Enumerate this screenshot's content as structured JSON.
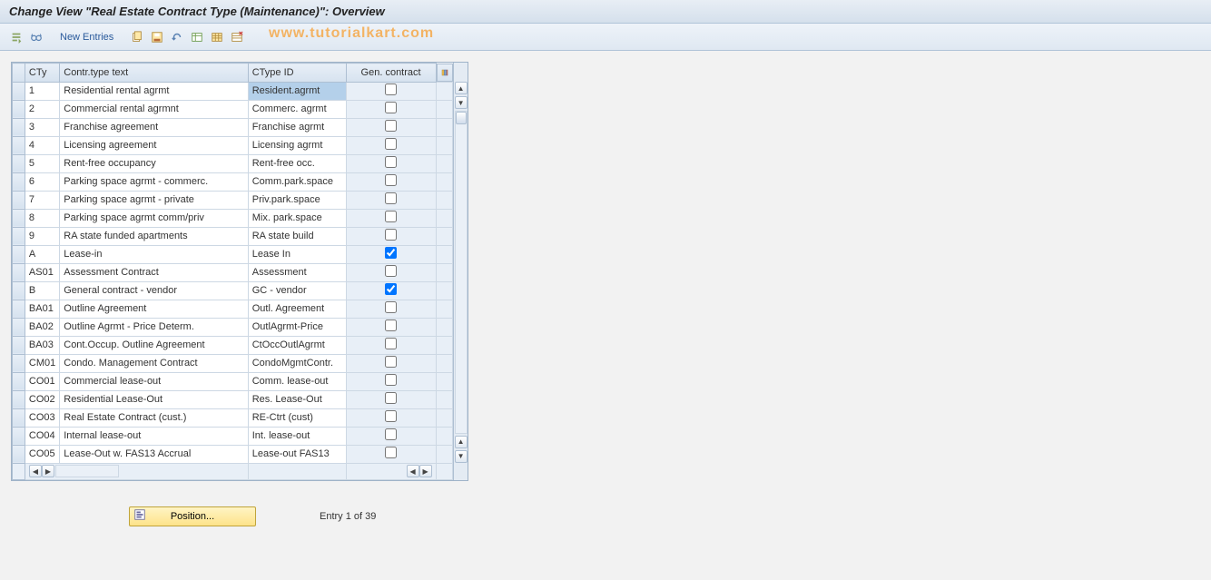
{
  "title": "Change View \"Real Estate Contract Type (Maintenance)\": Overview",
  "watermark": "www.tutorialkart.com",
  "toolbar": {
    "new_entries": "New Entries"
  },
  "table": {
    "columns": {
      "cty": "CTy",
      "text": "Contr.type text",
      "id": "CType ID",
      "gen": "Gen. contract"
    },
    "selected_cell_row": 0,
    "rows": [
      {
        "cty": "1",
        "text": "Residential rental agrmt",
        "id": "Resident.agrmt",
        "gen": false
      },
      {
        "cty": "2",
        "text": "Commercial rental agrmnt",
        "id": "Commerc. agrmt",
        "gen": false
      },
      {
        "cty": "3",
        "text": "Franchise agreement",
        "id": "Franchise agrmt",
        "gen": false
      },
      {
        "cty": "4",
        "text": "Licensing agreement",
        "id": "Licensing agrmt",
        "gen": false
      },
      {
        "cty": "5",
        "text": "Rent-free occupancy",
        "id": "Rent-free occ.",
        "gen": false
      },
      {
        "cty": "6",
        "text": "Parking space agrmt - commerc.",
        "id": "Comm.park.space",
        "gen": false
      },
      {
        "cty": "7",
        "text": "Parking space agrmt - private",
        "id": "Priv.park.space",
        "gen": false
      },
      {
        "cty": "8",
        "text": "Parking space agrmt comm/priv",
        "id": "Mix. park.space",
        "gen": false
      },
      {
        "cty": "9",
        "text": "RA state funded apartments",
        "id": "RA state build",
        "gen": false
      },
      {
        "cty": "A",
        "text": "Lease-in",
        "id": "Lease In",
        "gen": true
      },
      {
        "cty": "AS01",
        "text": "Assessment Contract",
        "id": "Assessment",
        "gen": false
      },
      {
        "cty": "B",
        "text": "General contract - vendor",
        "id": "GC - vendor",
        "gen": true
      },
      {
        "cty": "BA01",
        "text": "Outline Agreement",
        "id": "Outl. Agreement",
        "gen": false
      },
      {
        "cty": "BA02",
        "text": "Outline Agrmt - Price Determ.",
        "id": "OutlAgrmt-Price",
        "gen": false
      },
      {
        "cty": "BA03",
        "text": "Cont.Occup. Outline Agreement",
        "id": "CtOccOutlAgrmt",
        "gen": false
      },
      {
        "cty": "CM01",
        "text": "Condo. Management Contract",
        "id": "CondoMgmtContr.",
        "gen": false
      },
      {
        "cty": "CO01",
        "text": "Commercial lease-out",
        "id": "Comm. lease-out",
        "gen": false
      },
      {
        "cty": "CO02",
        "text": "Residential Lease-Out",
        "id": "Res. Lease-Out",
        "gen": false
      },
      {
        "cty": "CO03",
        "text": "Real Estate Contract (cust.)",
        "id": "RE-Ctrt (cust)",
        "gen": false
      },
      {
        "cty": "CO04",
        "text": "Internal lease-out",
        "id": "Int. lease-out",
        "gen": false
      },
      {
        "cty": "CO05",
        "text": "Lease-Out w. FAS13 Accrual",
        "id": "Lease-out FAS13",
        "gen": false
      }
    ]
  },
  "footer": {
    "position_label": "Position...",
    "entry_text": "Entry 1 of 39"
  },
  "colors": {
    "header_bg_top": "#e8eef5",
    "header_bg_bottom": "#d5e0ec",
    "toolbar_bg_top": "#eef3f9",
    "toolbar_bg_bottom": "#dfe8f2",
    "border": "#aebfd2",
    "cell_bg": "#ffffff",
    "checkbox_col_bg": "#e8eff7",
    "selected_bg": "#b4d0ea",
    "watermark_color": "#f5a94b",
    "button_bg_top": "#fff4c4",
    "button_bg_bottom": "#fde38a",
    "button_border": "#c0a43a",
    "link_color": "#2a5a9b"
  }
}
